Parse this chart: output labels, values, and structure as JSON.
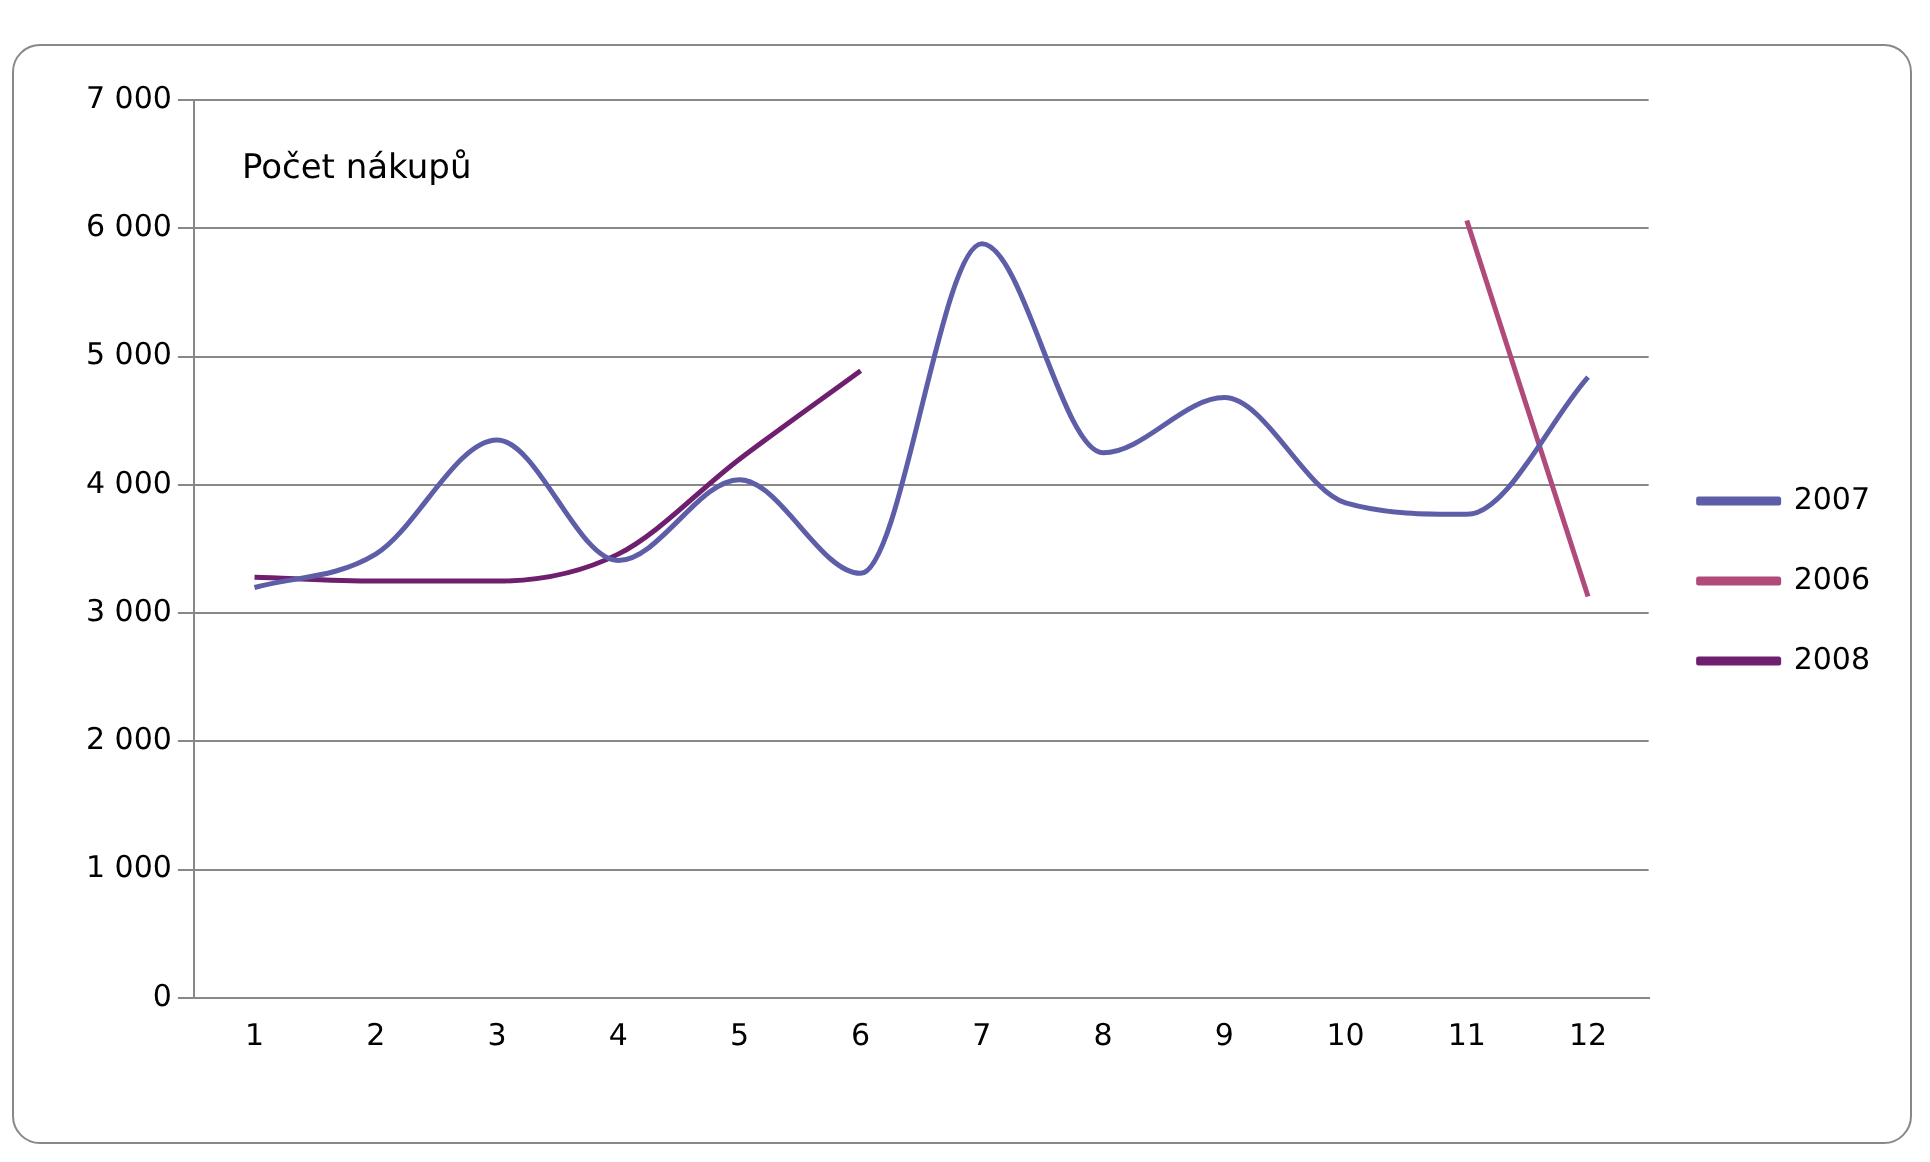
{
  "chart_data": {
    "type": "line",
    "title": "Počet nákupů",
    "categories": [
      "1",
      "2",
      "3",
      "4",
      "5",
      "6",
      "7",
      "8",
      "9",
      "10",
      "11",
      "12"
    ],
    "series": [
      {
        "name": "2007",
        "color": "#5e5ea8",
        "values": [
          3200,
          3460,
          4350,
          3410,
          4040,
          3310,
          5880,
          4250,
          4680,
          3860,
          3770,
          4840
        ]
      },
      {
        "name": "2006",
        "color": "#b04a7a",
        "values": [
          null,
          null,
          null,
          null,
          null,
          null,
          null,
          null,
          null,
          null,
          6060,
          3130
        ]
      },
      {
        "name": "2008",
        "color": "#6e1f6e",
        "values": [
          3280,
          3250,
          3250,
          3460,
          4200,
          4890,
          null,
          null,
          null,
          null,
          null,
          null
        ]
      }
    ],
    "ylim": [
      0,
      7000
    ],
    "yticks": [
      {
        "value": 0,
        "label": "0"
      },
      {
        "value": 1000,
        "label": "1 000"
      },
      {
        "value": 2000,
        "label": "2 000"
      },
      {
        "value": 3000,
        "label": "3 000"
      },
      {
        "value": 4000,
        "label": "4 000"
      },
      {
        "value": 5000,
        "label": "5 000"
      },
      {
        "value": 6000,
        "label": "6 000"
      },
      {
        "value": 7000,
        "label": "7 000"
      }
    ],
    "grid": "y",
    "legend": "right",
    "marker": "none",
    "line_style": "solid"
  }
}
